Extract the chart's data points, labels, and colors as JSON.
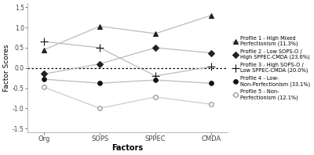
{
  "x_labels": [
    "Org",
    "SOPS",
    "SPPEC",
    "CMDA"
  ],
  "profiles": [
    {
      "label": "Profile 1 - High Mixed\nPerfectionism (11.3%)",
      "values": [
        0.45,
        1.03,
        0.85,
        1.3
      ],
      "marker": "^",
      "mfc": "#222222",
      "mec": "#222222",
      "ms": 5,
      "lw": 0.9,
      "color": "#bbbbbb"
    },
    {
      "label": "Profile 2 - Low SOPS-O /\nHigh SPPEC-CMDA (23.6%)",
      "values": [
        -0.15,
        0.1,
        0.5,
        0.37
      ],
      "marker": "D",
      "mfc": "#222222",
      "mec": "#222222",
      "ms": 4,
      "lw": 0.9,
      "color": "#bbbbbb"
    },
    {
      "label": "Profile 3 - High SOPS-O /\nLow SPPEC-CMDA (20.0%)",
      "values": [
        0.65,
        0.5,
        -0.2,
        0.03
      ],
      "marker": "+",
      "mfc": "#111111",
      "mec": "#111111",
      "ms": 7,
      "lw": 0.9,
      "color": "#bbbbbb"
    },
    {
      "label": "Profile 4 - Low-\nNon-Perfectionism (33.1%)",
      "values": [
        -0.28,
        -0.38,
        -0.3,
        -0.38
      ],
      "marker": "o",
      "mfc": "#111111",
      "mec": "#111111",
      "ms": 4,
      "lw": 0.9,
      "color": "#bbbbbb"
    },
    {
      "label": "Profile 5 - Non-\nPerfectionism (12.1%)",
      "values": [
        -0.48,
        -1.0,
        -0.72,
        -0.9
      ],
      "marker": "o",
      "mfc": "white",
      "mec": "#888888",
      "ms": 4,
      "lw": 0.9,
      "color": "#cccccc"
    }
  ],
  "ylabel": "Factor Scores",
  "xlabel": "Factors",
  "ylim": [
    -1.6,
    1.6
  ],
  "yticks": [
    -1.5,
    -1.0,
    -0.5,
    0.0,
    0.5,
    1.0,
    1.5
  ],
  "ytick_labels": [
    "-1.5",
    "-1.0",
    "-0.5",
    "0.0",
    "0.5",
    "1.0",
    "1.5"
  ],
  "background_color": "#ffffff",
  "legend_labels": [
    "Profile 1 - High Mixed\nPerfectionism (11.3%)",
    "Profile 2 - Low SOPS-O /\nHigh SPPEC-CMDA (23.6%)",
    "Profile 3 - High SOPS-O /\nLow SPPEC-CMDA (20.0%)",
    "Profile 4 - Low-\nNon-Perfectionism (33.1%)",
    "Profile 5 - Non-\nPerfectionism (12.1%)"
  ]
}
